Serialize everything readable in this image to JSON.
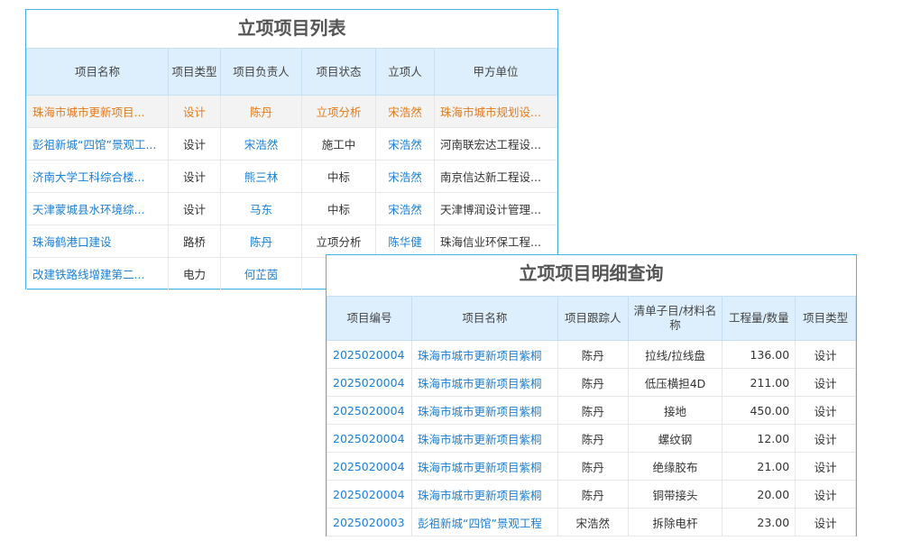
{
  "list": {
    "title": "立项项目列表",
    "headers": [
      "项目名称",
      "项目类型",
      "项目负责人",
      "项目状态",
      "立项人",
      "甲方单位"
    ],
    "rows": [
      [
        "珠海市城市更新项目...",
        "设计",
        "陈丹",
        "立项分析",
        "宋浩然",
        "珠海市城市规划设..."
      ],
      [
        "彭祖新城“四馆”景观工...",
        "设计",
        "宋浩然",
        "施工中",
        "宋浩然",
        "河南联宏达工程设..."
      ],
      [
        "济南大学工科综合楼...",
        "设计",
        "熊三林",
        "中标",
        "宋浩然",
        "南京信达新工程设..."
      ],
      [
        "天津蒙城县水环境综...",
        "设计",
        "马东",
        "中标",
        "宋浩然",
        "天津博润设计管理..."
      ],
      [
        "珠海鹤港口建设",
        "路桥",
        "陈丹",
        "立项分析",
        "陈华健",
        "珠海信业环保工程..."
      ],
      [
        "改建铁路线增建第二...",
        "电力",
        "何芷茵",
        "",
        "",
        ""
      ]
    ],
    "selected_row": 0,
    "colors": {
      "accent": "#1a7fd6",
      "selected": "#e27c1e",
      "header_bg": "#ddeefc",
      "border": "#3fb6ec"
    }
  },
  "detail": {
    "title": "立项项目明细查询",
    "headers": [
      "项目编号",
      "项目名称",
      "项目跟踪人",
      "清单子目/材料名称",
      "工程量/数量",
      "项目类型"
    ],
    "rows": [
      [
        "2025020004",
        "珠海市城市更新项目紫桐",
        "陈丹",
        "拉线/拉线盘",
        "136.00",
        "设计"
      ],
      [
        "2025020004",
        "珠海市城市更新项目紫桐",
        "陈丹",
        "低压横担4D",
        "211.00",
        "设计"
      ],
      [
        "2025020004",
        "珠海市城市更新项目紫桐",
        "陈丹",
        "接地",
        "450.00",
        "设计"
      ],
      [
        "2025020004",
        "珠海市城市更新项目紫桐",
        "陈丹",
        "螺纹钢",
        "12.00",
        "设计"
      ],
      [
        "2025020004",
        "珠海市城市更新项目紫桐",
        "陈丹",
        "绝缘胶布",
        "21.00",
        "设计"
      ],
      [
        "2025020004",
        "珠海市城市更新项目紫桐",
        "陈丹",
        "铜带接头",
        "20.00",
        "设计"
      ],
      [
        "2025020003",
        "彭祖新城“四馆”景观工程",
        "宋浩然",
        "拆除电杆",
        "23.00",
        "设计"
      ]
    ]
  }
}
